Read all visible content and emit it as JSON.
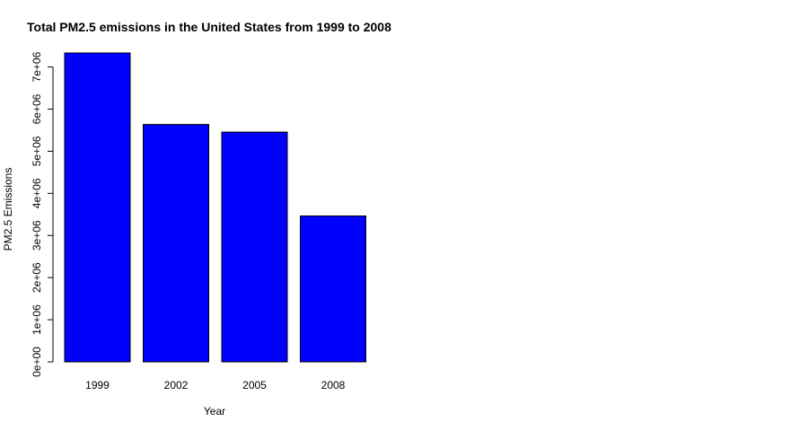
{
  "chart_data": {
    "type": "bar",
    "title": "Total PM2.5 emissions in the United States from 1999 to 2008",
    "xlabel": "Year",
    "ylabel": "PM2.5 Emissions",
    "categories": [
      "1999",
      "2002",
      "2005",
      "2008"
    ],
    "values": [
      7332967,
      5635780,
      5454703,
      3464206
    ],
    "ylim": [
      0,
      7332967
    ],
    "yticks": [
      0,
      1000000,
      2000000,
      3000000,
      4000000,
      5000000,
      6000000,
      7000000
    ],
    "ytick_labels": [
      "0e+00",
      "1e+06",
      "2e+06",
      "3e+06",
      "4e+06",
      "5e+06",
      "6e+06",
      "7e+06"
    ],
    "bar_color": "#0000ff",
    "bar_border_color": "#000000",
    "grid": false,
    "legend": "none"
  }
}
